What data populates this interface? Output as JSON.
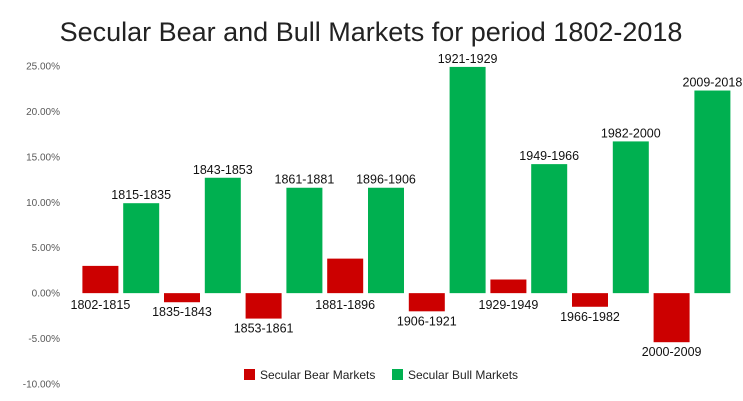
{
  "chart_data": {
    "type": "bar",
    "title": "Secular Bear and Bull Markets for period 1802-2018",
    "xlabel": "",
    "ylabel": "",
    "ylim": [
      -0.1,
      0.25
    ],
    "ytick_step": 0.05,
    "ytick_labels": [
      "-10.00%",
      "-5.00%",
      "0.00%",
      "5.00%",
      "10.00%",
      "15.00%",
      "20.00%",
      "25.00%"
    ],
    "grid": false,
    "legend_position": "bottom",
    "colors": {
      "bear": "#cc0000",
      "bull": "#00b050"
    },
    "categories": [
      "1802-1815",
      "1815-1835",
      "1835-1843",
      "1843-1853",
      "1853-1861",
      "1861-1881",
      "1881-1896",
      "1896-1906",
      "1906-1921",
      "1921-1929",
      "1929-1949",
      "1949-1966",
      "1966-1982",
      "1982-2000",
      "2000-2009",
      "2009-2018"
    ],
    "series": [
      {
        "name": "Secular Bear Markets",
        "key": "bear",
        "values": [
          0.03,
          null,
          -0.01,
          null,
          -0.028,
          null,
          0.038,
          null,
          -0.02,
          null,
          0.015,
          null,
          -0.015,
          null,
          -0.054,
          null
        ]
      },
      {
        "name": "Secular Bull Markets",
        "key": "bull",
        "values": [
          null,
          0.099,
          null,
          0.127,
          null,
          0.116,
          null,
          0.116,
          null,
          0.249,
          null,
          0.142,
          null,
          0.167,
          null,
          0.223
        ]
      }
    ]
  }
}
